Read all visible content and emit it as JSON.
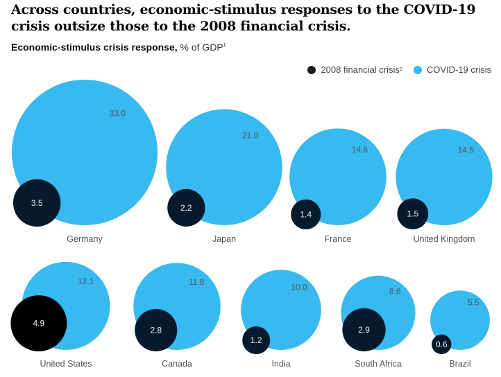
{
  "chart_data": {
    "type": "bubble",
    "title": "Across countries, economic-stimulus responses to the COVID-19 crisis outsize those to the 2008 financial crisis.",
    "subtitle_bold": "Economic-stimulus crisis response,",
    "subtitle_unit": "% of GDP",
    "subtitle_footnote": "1",
    "legend": [
      {
        "name": "2008 financial crisis",
        "footnote": "2",
        "color": "#061a2b"
      },
      {
        "name": "COVID-19 crisis",
        "footnote": "",
        "color": "#38b9f0"
      }
    ],
    "legend_position": "top-right",
    "series_names": [
      "2008 financial crisis",
      "COVID-19 crisis"
    ],
    "countries": [
      {
        "name": "Germany",
        "crisis_2008": 3.5,
        "covid_19": 33.0,
        "crisis_2008_label": "3.5",
        "covid_19_label": "33.0"
      },
      {
        "name": "Japan",
        "crisis_2008": 2.2,
        "covid_19": 21.0,
        "crisis_2008_label": "2.2",
        "covid_19_label": "21.0"
      },
      {
        "name": "France",
        "crisis_2008": 1.4,
        "covid_19": 14.6,
        "crisis_2008_label": "1.4",
        "covid_19_label": "14.6"
      },
      {
        "name": "United Kingdom",
        "crisis_2008": 1.5,
        "covid_19": 14.5,
        "crisis_2008_label": "1.5",
        "covid_19_label": "14.5"
      },
      {
        "name": "United States",
        "crisis_2008": 4.9,
        "covid_19": 12.1,
        "crisis_2008_label": "4.9",
        "covid_19_label": "12.1"
      },
      {
        "name": "Canada",
        "crisis_2008": 2.8,
        "covid_19": 11.8,
        "crisis_2008_label": "2.8",
        "covid_19_label": "11.8"
      },
      {
        "name": "India",
        "crisis_2008": 1.2,
        "covid_19": 10.0,
        "crisis_2008_label": "1.2",
        "covid_19_label": "10.0"
      },
      {
        "name": "South Africa",
        "crisis_2008": 2.9,
        "covid_19": 8.6,
        "crisis_2008_label": "2.9",
        "covid_19_label": "8.6"
      },
      {
        "name": "Brazil",
        "crisis_2008": 0.6,
        "covid_19": 5.5,
        "crisis_2008_label": "0.6",
        "covid_19_label": "5.5"
      }
    ],
    "colors": {
      "crisis_2008": "#061a2b",
      "covid_19": "#38b9f0",
      "us_2008": "#000000"
    }
  }
}
